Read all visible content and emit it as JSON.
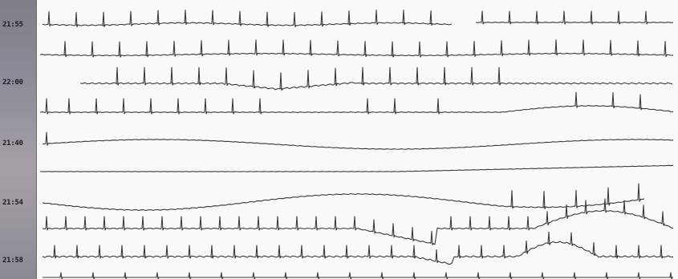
{
  "strip": {
    "time_labels": [
      "21:55",
      "22:00",
      "21:40",
      "21:54",
      "21:58"
    ]
  },
  "colors": {
    "paper": "#f9f9f6",
    "trace": "#3a3a3a",
    "time_bar": "#8e8c97"
  }
}
